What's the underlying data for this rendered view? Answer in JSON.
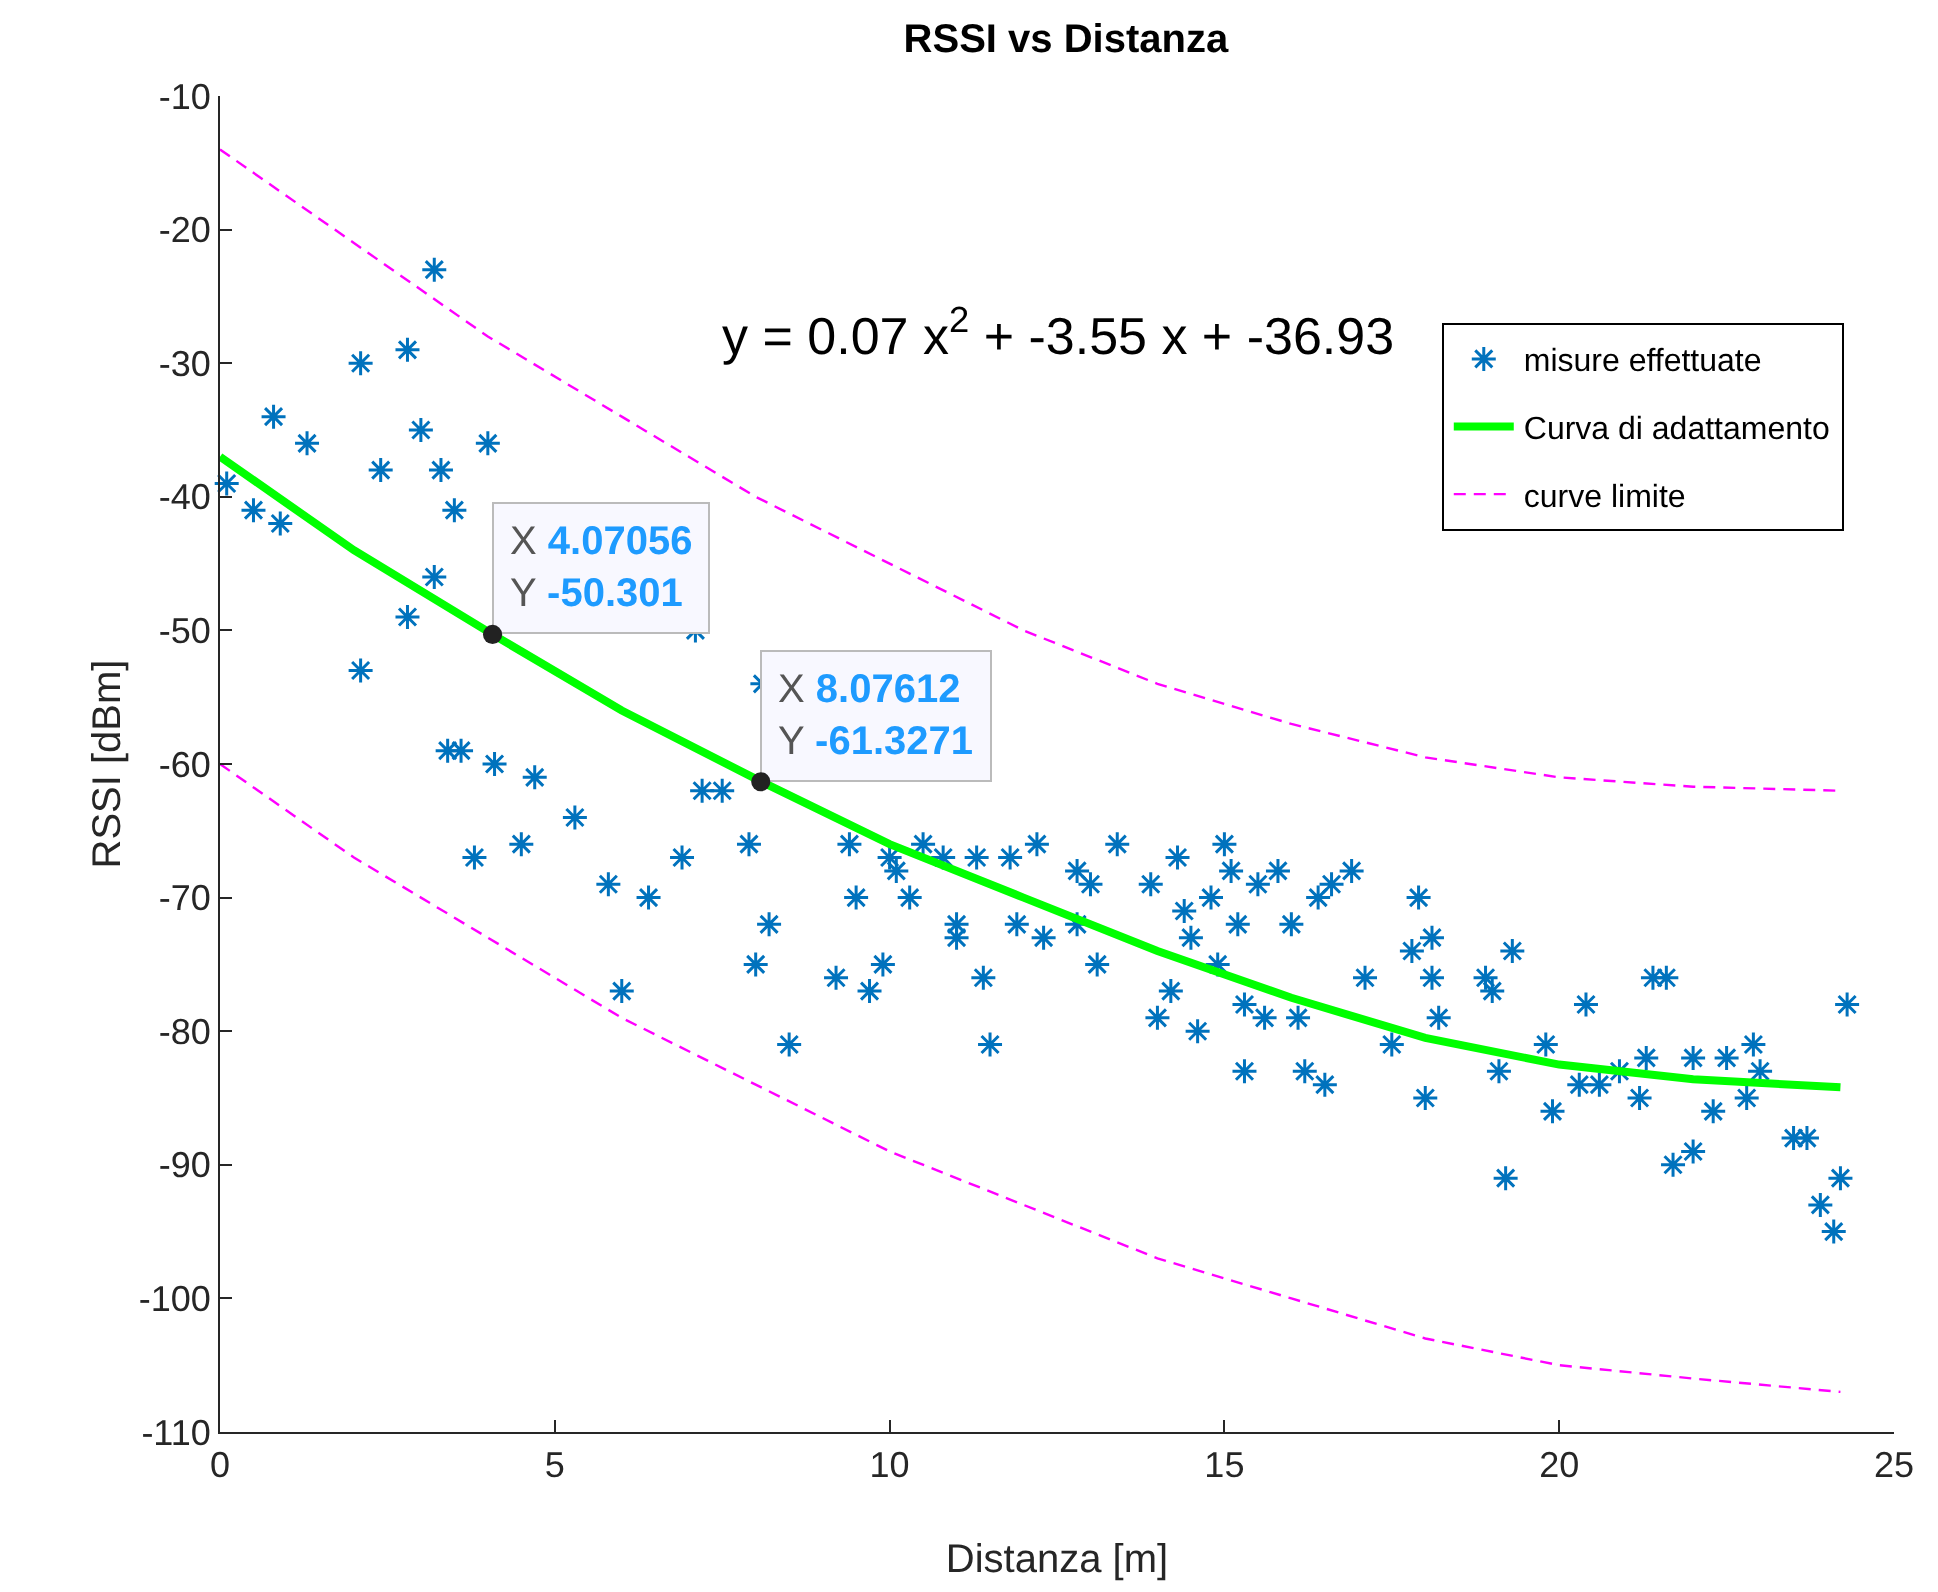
{
  "chart_data": {
    "type": "scatter",
    "title": "RSSI vs Distanza",
    "xlabel": "Distanza [m]",
    "ylabel": "RSSI [dBm]",
    "xlim": [
      0,
      25
    ],
    "xticks": [
      0,
      5,
      10,
      15,
      20,
      25
    ],
    "ylim": [
      -110,
      -10
    ],
    "yticks": [
      -110,
      -100,
      -90,
      -80,
      -70,
      -60,
      -50,
      -40,
      -30,
      -20,
      -10
    ],
    "grid": false,
    "legend": "top right",
    "series": [
      {
        "name": "misure effettuate",
        "marker": "cross",
        "color": "#0072bd",
        "x": [
          0.1,
          0.5,
          0.8,
          0.9,
          1.3,
          2.1,
          2.1,
          2.4,
          2.8,
          2.8,
          3.0,
          3.2,
          3.2,
          3.3,
          3.4,
          3.5,
          3.6,
          3.8,
          4.0,
          4.1,
          4.5,
          4.7,
          5.3,
          5.8,
          6.0,
          6.4,
          6.9,
          7.1,
          7.2,
          7.5,
          7.9,
          8.0,
          8.1,
          8.2,
          8.5,
          9.2,
          9.4,
          9.5,
          9.7,
          9.9,
          10.0,
          10.1,
          10.3,
          10.5,
          10.8,
          11.0,
          11.0,
          11.3,
          11.4,
          11.5,
          11.8,
          11.9,
          12.2,
          12.3,
          12.8,
          12.8,
          13.0,
          13.1,
          13.4,
          13.9,
          14.0,
          14.2,
          14.3,
          14.4,
          14.5,
          14.6,
          14.8,
          14.9,
          15.0,
          15.1,
          15.2,
          15.3,
          15.3,
          15.5,
          15.6,
          15.8,
          16.0,
          16.1,
          16.2,
          16.4,
          16.5,
          16.6,
          16.9,
          17.1,
          17.5,
          17.8,
          17.9,
          18.0,
          18.1,
          18.1,
          18.2,
          18.9,
          19.0,
          19.1,
          19.2,
          19.3,
          19.8,
          19.9,
          20.3,
          20.4,
          20.6,
          20.9,
          21.2,
          21.3,
          21.4,
          21.6,
          21.7,
          22.0,
          22.0,
          22.3,
          22.5,
          22.8,
          22.9,
          23.0,
          23.5,
          23.7,
          23.9,
          24.1,
          24.2,
          24.3
        ],
        "values": [
          -39,
          -41,
          -34,
          -42,
          -36,
          -30,
          -53,
          -38,
          -29,
          -49,
          -35,
          -23,
          -46,
          -38,
          -59,
          -41,
          -59,
          -67,
          -36,
          -60,
          -66,
          -61,
          -64,
          -69,
          -77,
          -70,
          -67,
          -50,
          -62,
          -62,
          -66,
          -75,
          -54,
          -72,
          -81,
          -76,
          -66,
          -70,
          -77,
          -75,
          -67,
          -68,
          -70,
          -66,
          -67,
          -72,
          -73,
          -67,
          -76,
          -81,
          -67,
          -72,
          -66,
          -73,
          -68,
          -72,
          -69,
          -75,
          -66,
          -69,
          -79,
          -77,
          -67,
          -71,
          -73,
          -80,
          -70,
          -75,
          -66,
          -68,
          -72,
          -78,
          -83,
          -69,
          -79,
          -68,
          -72,
          -79,
          -83,
          -70,
          -84,
          -69,
          -68,
          -76,
          -81,
          -74,
          -70,
          -85,
          -73,
          -76,
          -79,
          -76,
          -77,
          -83,
          -91,
          -74,
          -81,
          -86,
          -84,
          -78,
          -84,
          -83,
          -85,
          -82,
          -76,
          -76,
          -90,
          -89,
          -82,
          -86,
          -82,
          -85,
          -81,
          -83,
          -88,
          -88,
          -93,
          -95,
          -91,
          -78
        ]
      },
      {
        "name": "Curva di adattamento",
        "type": "line",
        "marker": "none",
        "line_style": "solid",
        "color": "#00ff00",
        "x": [
          0,
          2,
          4.07056,
          6,
          8.07612,
          10,
          12,
          14,
          16,
          18,
          20,
          22,
          24.2
        ],
        "values": [
          -37,
          -44,
          -50.3,
          -56,
          -61.3,
          -66,
          -70,
          -74,
          -77.5,
          -80.5,
          -82.5,
          -83.6,
          -84.2
        ]
      },
      {
        "name": "curve limite",
        "type": "line",
        "marker": "none",
        "line_style": "dashed",
        "color": "#ff00ff",
        "x": [
          0,
          2,
          4,
          6,
          8,
          10,
          12,
          14,
          16,
          18,
          20,
          22,
          24.2
        ],
        "values": [
          -14,
          -21,
          -28,
          -34,
          -40,
          -45,
          -50,
          -54,
          -57,
          -59.5,
          -61,
          -61.7,
          -62
        ]
      },
      {
        "type": "line",
        "marker": "none",
        "line_style": "dashed",
        "color": "#ff00ff",
        "x": [
          0,
          2,
          4,
          6,
          8,
          10,
          12,
          14,
          16,
          18,
          20,
          22,
          24.2
        ],
        "values": [
          -60,
          -67,
          -73,
          -79,
          -84,
          -89,
          -93,
          -97,
          -100,
          -103,
          -105,
          -106,
          -107
        ]
      }
    ],
    "annotations": [
      "y = 0.07 x$^{2}$ + -3.55 x + -36.93",
      {
        "text": "X 4.07056\nY -50.301",
        "x": 4.07056,
        "y": -50.301
      },
      {
        "text": "X 8.07612\nY -61.3271",
        "x": 8.07612,
        "y": -61.3271
      }
    ]
  }
}
